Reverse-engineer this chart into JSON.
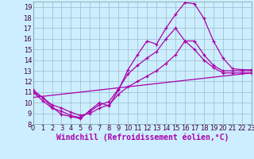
{
  "background_color": "#cceeff",
  "line_color": "#aa00aa",
  "grid_color": "#99bbcc",
  "xlabel": "Windchill (Refroidissement éolien,°C)",
  "xlim": [
    0,
    23
  ],
  "ylim": [
    8,
    19.5
  ],
  "xticks": [
    0,
    1,
    2,
    3,
    4,
    5,
    6,
    7,
    8,
    9,
    10,
    11,
    12,
    13,
    14,
    15,
    16,
    17,
    18,
    19,
    20,
    21,
    22,
    23
  ],
  "yticks": [
    8,
    9,
    10,
    11,
    12,
    13,
    14,
    15,
    16,
    17,
    18,
    19
  ],
  "curve1_x": [
    0,
    1,
    2,
    3,
    4,
    5,
    6,
    7,
    8,
    9,
    10,
    11,
    12,
    13,
    14,
    15,
    16,
    17,
    18,
    19,
    20,
    21,
    22,
    23
  ],
  "curve1_y": [
    11.2,
    10.5,
    9.6,
    8.9,
    8.7,
    8.5,
    9.3,
    10.0,
    9.7,
    11.2,
    13.1,
    14.5,
    15.8,
    15.5,
    17.0,
    18.3,
    19.4,
    19.3,
    17.9,
    15.8,
    14.2,
    13.2,
    13.1,
    13.1
  ],
  "curve2_x": [
    0,
    1,
    2,
    3,
    4,
    5,
    6,
    7,
    8,
    9,
    10,
    11,
    12,
    13,
    14,
    15,
    16,
    17,
    18,
    19,
    20,
    21,
    22,
    23
  ],
  "curve2_y": [
    11.0,
    10.2,
    9.5,
    9.2,
    8.8,
    8.6,
    9.2,
    9.8,
    10.1,
    11.3,
    12.7,
    13.5,
    14.2,
    14.8,
    16.0,
    17.0,
    15.8,
    15.8,
    14.5,
    13.5,
    13.0,
    13.0,
    13.0,
    13.0
  ],
  "curve3_x": [
    0,
    1,
    2,
    3,
    4,
    5,
    6,
    7,
    8,
    9,
    10,
    11,
    12,
    13,
    14,
    15,
    16,
    17,
    18,
    19,
    20,
    21,
    22,
    23
  ],
  "curve3_y": [
    11.0,
    10.5,
    9.8,
    9.5,
    9.1,
    8.8,
    9.0,
    9.5,
    9.8,
    10.8,
    11.5,
    12.0,
    12.5,
    13.0,
    13.7,
    14.5,
    15.8,
    15.0,
    14.0,
    13.3,
    12.8,
    12.8,
    12.8,
    12.8
  ],
  "line4_x": [
    0,
    23
  ],
  "line4_y": [
    10.5,
    12.8
  ]
}
